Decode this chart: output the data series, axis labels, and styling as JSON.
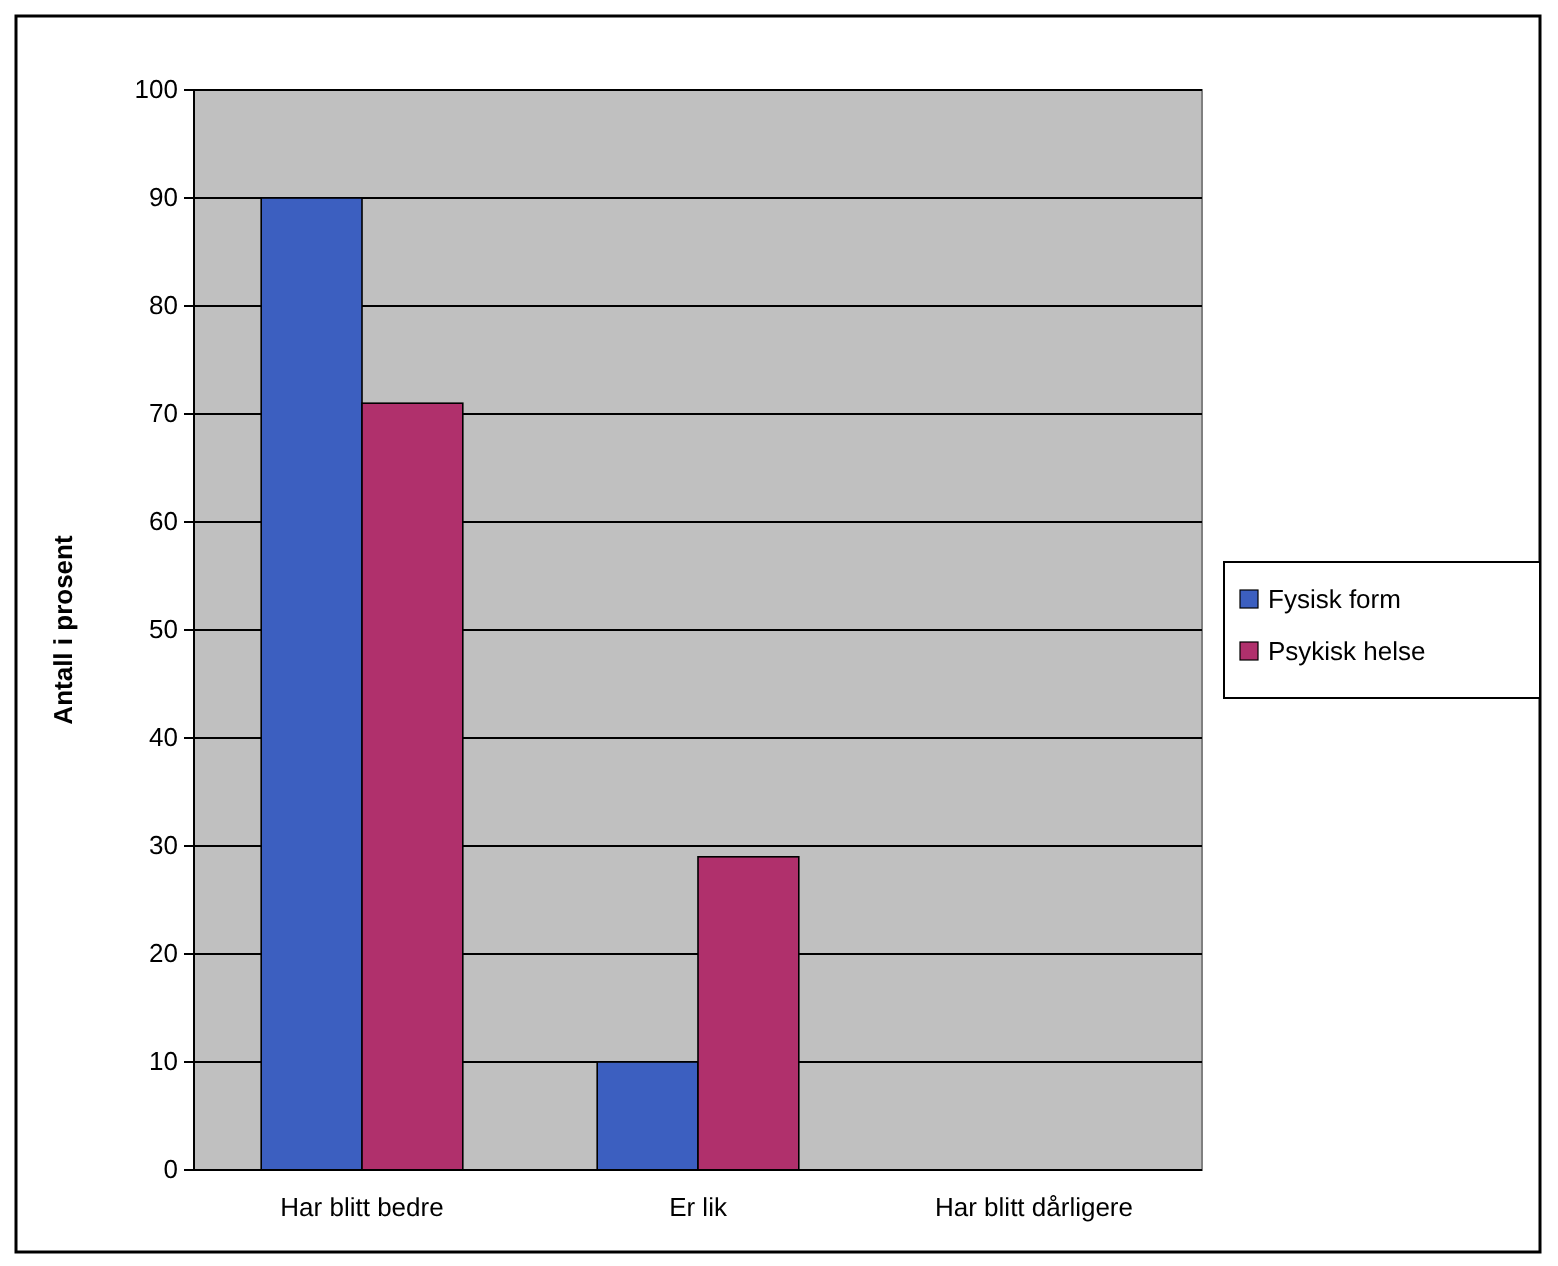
{
  "chart_data": {
    "type": "bar",
    "ylabel": "Antall i prosent",
    "categories": [
      "Har blitt bedre",
      "Er lik",
      "Har blitt dårligere"
    ],
    "series": [
      {
        "name": "Fysisk form",
        "color": "#3c5fc0",
        "values": [
          90,
          10,
          0
        ]
      },
      {
        "name": "Psykisk helse",
        "color": "#b0306c",
        "values": [
          71,
          29,
          0
        ]
      }
    ],
    "ylim": [
      0,
      100
    ],
    "yticks": [
      0,
      10,
      20,
      30,
      40,
      50,
      60,
      70,
      80,
      90,
      100
    ],
    "grid": "y",
    "legend": "right"
  }
}
